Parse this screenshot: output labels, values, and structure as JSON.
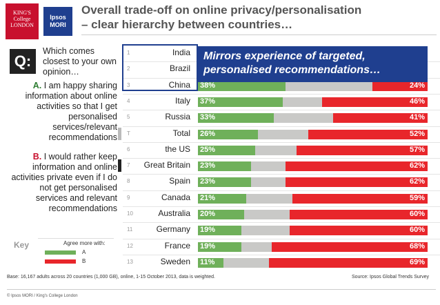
{
  "logos": {
    "kings_lines": [
      "KING'S",
      "College",
      "LONDON"
    ],
    "ipsos_lines": [
      "Ipsos",
      "MORI"
    ]
  },
  "title": {
    "line1": "Overall trade-off on online privacy/personalisation",
    "line2": "– clear hierarchy between countries…"
  },
  "question": {
    "badge": "Q:",
    "text": "Which comes closest to your own opinion…",
    "option_a_letter": "A.",
    "option_a_text": "I am happy sharing information about online activities so that I get personalised services/relevant recommendations",
    "option_b_letter": "B.",
    "option_b_text": "I would rather keep information and online activities private even if I do not get personalised services and relevant recommendations"
  },
  "key": {
    "label": "Key",
    "title": "Agree more with:",
    "a_label": "A",
    "b_label": "B",
    "a_color": "#6fb05a",
    "b_color": "#e8262b"
  },
  "callout": "Mirrors experience of targeted, personalised recommendations…",
  "colors": {
    "a": "#6fb05a",
    "middle": "#c9c9c7",
    "b": "#e8262b",
    "highlight": "#1f3f8f",
    "marker_total": "#bbbbbb",
    "marker_gb": "#222222"
  },
  "chart_data": {
    "type": "bar",
    "orientation": "horizontal",
    "stacked": true,
    "xlim": [
      0,
      100
    ],
    "categories": [
      "India",
      "Brazil",
      "China",
      "Italy",
      "Russia",
      "Total",
      "the US",
      "Great Britain",
      "Spain",
      "Canada",
      "Australia",
      "Germany",
      "France",
      "Sweden"
    ],
    "ranks": [
      "1",
      "2",
      "3",
      "4",
      "5",
      "T",
      "6",
      "7",
      "8",
      "9",
      "10",
      "11",
      "12",
      "13"
    ],
    "markers": {
      "Total": "total",
      "Great Britain": "gb"
    },
    "series": [
      {
        "name": "A",
        "values": [
          null,
          null,
          38,
          37,
          33,
          26,
          25,
          23,
          23,
          21,
          20,
          19,
          19,
          11
        ],
        "labels": [
          "",
          "",
          "38%",
          "37%",
          "33%",
          "26%",
          "25%",
          "23%",
          "23%",
          "21%",
          "20%",
          "19%",
          "19%",
          "11%"
        ]
      },
      {
        "name": "",
        "values": [
          null,
          null,
          38,
          17,
          26,
          22,
          18,
          15,
          15,
          20,
          20,
          21,
          13,
          20
        ]
      },
      {
        "name": "B",
        "values": [
          null,
          null,
          24,
          46,
          41,
          52,
          57,
          62,
          62,
          59,
          60,
          60,
          68,
          69
        ],
        "labels": [
          "",
          "",
          "24%",
          "46%",
          "41%",
          "52%",
          "57%",
          "62%",
          "62%",
          "59%",
          "60%",
          "60%",
          "68%",
          "69%"
        ]
      }
    ]
  },
  "footer": {
    "base": "Base: 16,167 adults across 20 countries (1,000 GB), online, 1-15 October 2013, data is weighted.",
    "source": "Source: Ipsos Global Trends Survey",
    "copyright": "© Ipsos MORI / King's College London"
  }
}
